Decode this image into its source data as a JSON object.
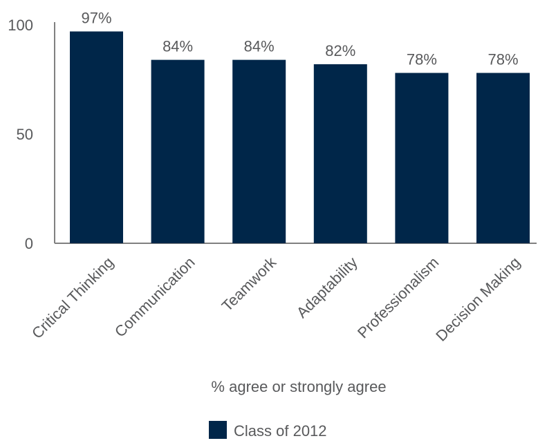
{
  "chart_data": {
    "type": "bar",
    "categories": [
      "Critical Thinking",
      "Communication",
      "Teamwork",
      "Adaptability",
      "Professionalism",
      "Decision Making"
    ],
    "series": [
      {
        "name": "Class of 2012",
        "values": [
          97,
          84,
          84,
          82,
          78,
          78
        ],
        "color": "#002649"
      }
    ],
    "data_labels": [
      "97%",
      "84%",
      "84%",
      "82%",
      "78%",
      "78%"
    ],
    "ylim": [
      0,
      100
    ],
    "yticks": [
      0,
      50,
      100
    ],
    "xlabel": "% agree or strongly agree",
    "ylabel": "",
    "grid": false,
    "legend_position": "bottom",
    "axis_color": "#808080",
    "text_color": "#58595b"
  }
}
